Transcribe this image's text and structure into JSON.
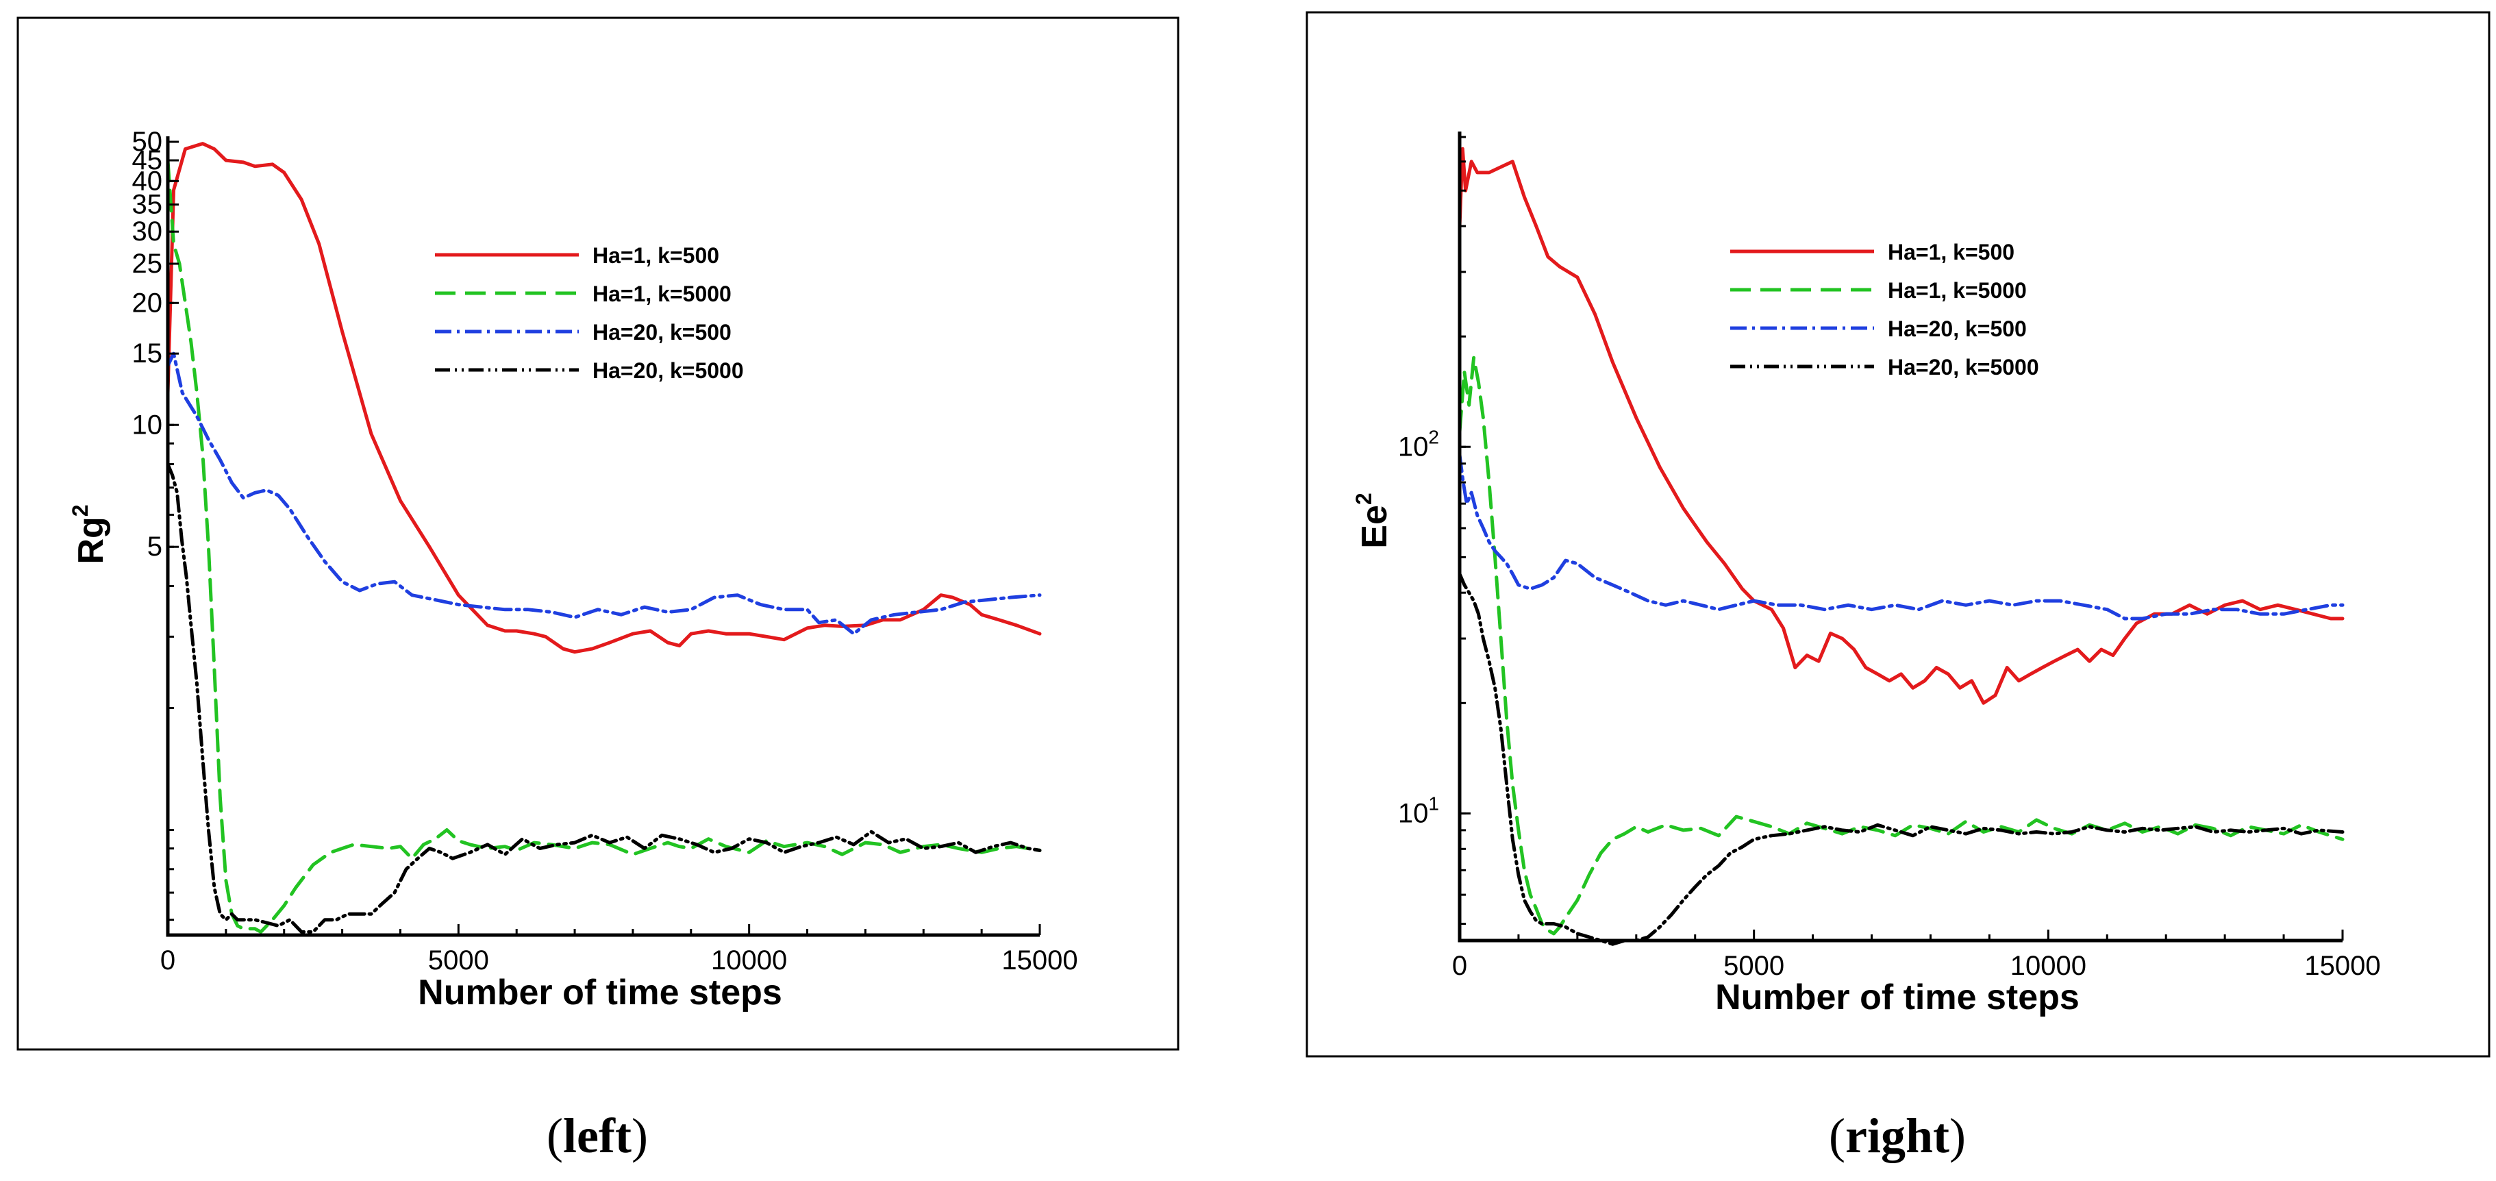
{
  "captions": {
    "left": "left",
    "right": "right"
  },
  "chart_data": [
    {
      "type": "line",
      "id": "left",
      "xlabel": "Number of time steps",
      "ylabel": "Rg",
      "ylabel_sup": "2",
      "xlim": [
        0,
        15000
      ],
      "ylim": [
        0.55,
        50
      ],
      "yscale": "log",
      "xticks": [
        0,
        5000,
        10000,
        15000
      ],
      "yticks": [
        {
          "v": 5,
          "label": "5"
        },
        {
          "v": 10,
          "label": "10"
        },
        {
          "v": 15,
          "label": "15"
        },
        {
          "v": 20,
          "label": "20"
        },
        {
          "v": 25,
          "label": "25"
        },
        {
          "v": 30,
          "label": "30"
        },
        {
          "v": 35,
          "label": "35"
        },
        {
          "v": 40,
          "label": "40"
        },
        {
          "v": 45,
          "label": "45"
        },
        {
          "v": 50,
          "label": "50"
        }
      ],
      "legend_position": "top-right",
      "series": [
        {
          "name": "Ha=1, k=500",
          "color": "#e31a1c",
          "dash": "none",
          "x": [
            0,
            100,
            300,
            600,
            800,
            1000,
            1300,
            1500,
            1800,
            2000,
            2300,
            2600,
            3000,
            3500,
            4000,
            4500,
            5000,
            5500,
            5800,
            6000,
            6300,
            6500,
            6800,
            7000,
            7300,
            7600,
            8000,
            8300,
            8600,
            8800,
            9000,
            9300,
            9600,
            10000,
            10300,
            10600,
            11000,
            11300,
            11600,
            12000,
            12300,
            12600,
            13000,
            13300,
            13500,
            13800,
            14000,
            14300,
            14600,
            15000
          ],
          "y": [
            12,
            38,
            48,
            49.5,
            48,
            45,
            44.5,
            43.5,
            44,
            42,
            36,
            28,
            17,
            9.5,
            6.5,
            5,
            3.8,
            3.2,
            3.1,
            3.1,
            3.05,
            3,
            2.8,
            2.75,
            2.8,
            2.9,
            3.05,
            3.1,
            2.9,
            2.85,
            3.05,
            3.1,
            3.05,
            3.05,
            3.0,
            2.95,
            3.15,
            3.2,
            3.18,
            3.2,
            3.3,
            3.3,
            3.5,
            3.8,
            3.75,
            3.6,
            3.4,
            3.3,
            3.2,
            3.05
          ]
        },
        {
          "name": "Ha=1, k=5000",
          "color": "#22c322",
          "dash": "30,14",
          "x": [
            0,
            100,
            200,
            300,
            400,
            500,
            600,
            700,
            800,
            900,
            1000,
            1100,
            1200,
            1300,
            1400,
            1500,
            1600,
            1800,
            2000,
            2200,
            2500,
            2800,
            3000,
            3200,
            3500,
            3800,
            4000,
            4200,
            4400,
            4600,
            4800,
            5000,
            5200,
            5500,
            5800,
            6000,
            6300,
            6600,
            7000,
            7300,
            7600,
            8000,
            8300,
            8600,
            8800,
            9000,
            9300,
            9600,
            10000,
            10300,
            10600,
            11000,
            11300,
            11600,
            12000,
            12300,
            12600,
            13000,
            13300,
            13600,
            14000,
            14300,
            14600,
            15000
          ],
          "y": [
            45,
            28,
            25,
            20,
            16,
            12,
            8.5,
            5,
            2.5,
            1.2,
            0.75,
            0.62,
            0.58,
            0.57,
            0.57,
            0.57,
            0.56,
            0.6,
            0.65,
            0.72,
            0.82,
            0.88,
            0.9,
            0.92,
            0.91,
            0.9,
            0.91,
            0.85,
            0.92,
            0.95,
            1.0,
            0.94,
            0.92,
            0.9,
            0.91,
            0.89,
            0.93,
            0.92,
            0.9,
            0.93,
            0.92,
            0.87,
            0.9,
            0.93,
            0.91,
            0.9,
            0.95,
            0.91,
            0.88,
            0.94,
            0.91,
            0.93,
            0.91,
            0.87,
            0.93,
            0.92,
            0.88,
            0.91,
            0.92,
            0.9,
            0.88,
            0.9,
            0.91,
            0.89
          ]
        },
        {
          "name": "Ha=20, k=500",
          "color": "#1f3fe0",
          "dash": "24,8,4,8",
          "x": [
            0,
            100,
            250,
            500,
            700,
            900,
            1100,
            1300,
            1500,
            1700,
            1900,
            2100,
            2400,
            2700,
            3000,
            3300,
            3600,
            3900,
            4200,
            4600,
            5000,
            5400,
            5800,
            6200,
            6600,
            7000,
            7400,
            7800,
            8200,
            8600,
            9000,
            9400,
            9800,
            10200,
            10600,
            11000,
            11200,
            11500,
            11800,
            12100,
            12500,
            12900,
            13300,
            13700,
            14100,
            14500,
            15000
          ],
          "y": [
            14,
            15,
            12,
            10.5,
            9.2,
            8.2,
            7.2,
            6.6,
            6.8,
            6.9,
            6.7,
            6.2,
            5.3,
            4.6,
            4.1,
            3.9,
            4.05,
            4.1,
            3.8,
            3.7,
            3.6,
            3.55,
            3.5,
            3.5,
            3.45,
            3.35,
            3.5,
            3.4,
            3.55,
            3.45,
            3.5,
            3.75,
            3.8,
            3.6,
            3.5,
            3.5,
            3.25,
            3.3,
            3.05,
            3.3,
            3.4,
            3.45,
            3.5,
            3.65,
            3.7,
            3.75,
            3.8
          ]
        },
        {
          "name": "Ha=20, k=5000",
          "color": "#000000",
          "dash": "22,7,3,7,3,7",
          "x": [
            0,
            80,
            160,
            240,
            320,
            400,
            500,
            600,
            700,
            800,
            900,
            1000,
            1100,
            1200,
            1300,
            1500,
            1700,
            1900,
            2100,
            2300,
            2500,
            2700,
            2900,
            3100,
            3300,
            3500,
            3700,
            3900,
            4100,
            4300,
            4500,
            4700,
            4900,
            5200,
            5500,
            5800,
            6100,
            6400,
            6700,
            7000,
            7300,
            7600,
            7900,
            8200,
            8500,
            8800,
            9100,
            9400,
            9700,
            10000,
            10300,
            10600,
            10900,
            11200,
            11500,
            11800,
            12100,
            12400,
            12700,
            13000,
            13300,
            13600,
            13900,
            14200,
            14500,
            14800,
            15000
          ],
          "y": [
            8,
            7.5,
            6.8,
            5.2,
            4.2,
            3.2,
            2.3,
            1.5,
            1.0,
            0.72,
            0.62,
            0.6,
            0.62,
            0.6,
            0.6,
            0.6,
            0.59,
            0.58,
            0.6,
            0.56,
            0.56,
            0.6,
            0.6,
            0.62,
            0.62,
            0.62,
            0.66,
            0.7,
            0.8,
            0.85,
            0.9,
            0.88,
            0.85,
            0.88,
            0.92,
            0.87,
            0.95,
            0.9,
            0.92,
            0.93,
            0.97,
            0.93,
            0.96,
            0.9,
            0.97,
            0.95,
            0.92,
            0.88,
            0.9,
            0.95,
            0.93,
            0.88,
            0.91,
            0.93,
            0.96,
            0.92,
            0.99,
            0.93,
            0.95,
            0.9,
            0.91,
            0.93,
            0.88,
            0.91,
            0.93,
            0.9,
            0.89
          ]
        }
      ]
    },
    {
      "type": "line",
      "id": "right",
      "xlabel": "Number of time steps",
      "ylabel": "Ee",
      "ylabel_sup": "2",
      "xlim": [
        0,
        15000
      ],
      "ylim": [
        4.5,
        700
      ],
      "yscale": "log",
      "xticks": [
        0,
        5000,
        10000,
        15000
      ],
      "yticks": [
        {
          "v": 10,
          "label": "10",
          "sup": "1"
        },
        {
          "v": 100,
          "label": "10",
          "sup": "2"
        }
      ],
      "legend_position": "top-right",
      "series": [
        {
          "name": "Ha=1, k=500",
          "color": "#e31a1c",
          "dash": "none",
          "x": [
            0,
            50,
            100,
            200,
            300,
            500,
            700,
            900,
            1100,
            1300,
            1500,
            1700,
            2000,
            2300,
            2600,
            3000,
            3400,
            3800,
            4200,
            4500,
            4800,
            5000,
            5300,
            5500,
            5700,
            5900,
            6100,
            6300,
            6500,
            6700,
            6900,
            7100,
            7300,
            7500,
            7700,
            7900,
            8100,
            8300,
            8500,
            8700,
            8900,
            9100,
            9300,
            9500,
            9700,
            9900,
            10100,
            10300,
            10500,
            10700,
            10900,
            11100,
            11300,
            11500,
            11800,
            12100,
            12400,
            12700,
            13000,
            13300,
            13600,
            13900,
            14200,
            14500,
            14800,
            15000
          ],
          "y": [
            400,
            650,
            500,
            600,
            560,
            560,
            580,
            600,
            480,
            400,
            330,
            310,
            290,
            230,
            170,
            120,
            88,
            68,
            55,
            48,
            41,
            38,
            36,
            32,
            25,
            27,
            26,
            31,
            30,
            28,
            25,
            24,
            23,
            24,
            22,
            23,
            25,
            24,
            22,
            23,
            20,
            21,
            25,
            23,
            24,
            25,
            26,
            27,
            28,
            26,
            28,
            27,
            30,
            33,
            35,
            35,
            37,
            35,
            37,
            38,
            36,
            37,
            36,
            35,
            34,
            34
          ]
        },
        {
          "name": "Ha=1, k=5000",
          "color": "#22c322",
          "dash": "30,14",
          "x": [
            0,
            80,
            160,
            240,
            320,
            400,
            500,
            600,
            700,
            800,
            900,
            1000,
            1100,
            1200,
            1300,
            1400,
            1500,
            1600,
            1700,
            1800,
            2000,
            2200,
            2400,
            2600,
            2800,
            3000,
            3200,
            3500,
            3800,
            4100,
            4400,
            4700,
            5000,
            5300,
            5600,
            5900,
            6200,
            6500,
            6800,
            7100,
            7400,
            7700,
            8000,
            8300,
            8600,
            8900,
            9200,
            9500,
            9800,
            10100,
            10400,
            10700,
            11000,
            11300,
            11600,
            11900,
            12200,
            12500,
            12800,
            13100,
            13400,
            13700,
            14000,
            14300,
            14600,
            15000
          ],
          "y": [
            110,
            160,
            130,
            175,
            150,
            120,
            80,
            50,
            30,
            18,
            12,
            9,
            7,
            6,
            5.5,
            5,
            4.8,
            4.7,
            4.9,
            5.2,
            5.8,
            6.8,
            7.8,
            8.5,
            8.8,
            9.2,
            8.9,
            9.3,
            9.0,
            9.1,
            8.7,
            9.8,
            9.5,
            9.2,
            8.8,
            9.4,
            9.1,
            8.8,
            9.2,
            9.0,
            8.7,
            9.3,
            9.1,
            8.8,
            9.5,
            8.9,
            9.2,
            8.9,
            9.6,
            9.1,
            8.8,
            9.3,
            9.0,
            9.4,
            8.9,
            9.2,
            8.8,
            9.3,
            9.1,
            8.7,
            9.2,
            9.0,
            8.8,
            9.3,
            8.9,
            8.5
          ]
        },
        {
          "name": "Ha=20, k=500",
          "color": "#1f3fe0",
          "dash": "24,8,4,8",
          "x": [
            0,
            60,
            120,
            200,
            300,
            400,
            500,
            600,
            700,
            800,
            900,
            1000,
            1200,
            1400,
            1600,
            1800,
            2000,
            2300,
            2600,
            2900,
            3200,
            3500,
            3800,
            4100,
            4400,
            4700,
            5000,
            5400,
            5800,
            6200,
            6600,
            7000,
            7400,
            7800,
            8200,
            8600,
            9000,
            9400,
            9800,
            10200,
            10600,
            11000,
            11300,
            11600,
            12000,
            12400,
            12800,
            13200,
            13600,
            14000,
            14400,
            14800,
            15000
          ],
          "y": [
            95,
            80,
            70,
            75,
            65,
            60,
            55,
            52,
            50,
            48,
            45,
            42,
            41,
            42,
            44,
            49,
            48,
            44,
            42,
            40,
            38,
            37,
            38,
            37,
            36,
            37,
            38,
            37,
            37,
            36,
            37,
            36,
            37,
            36,
            38,
            37,
            38,
            37,
            38,
            38,
            37,
            36,
            34,
            34,
            35,
            35,
            36,
            36,
            35,
            35,
            36,
            37,
            37
          ]
        },
        {
          "name": "Ha=20, k=5000",
          "color": "#000000",
          "dash": "22,7,3,7,3,7",
          "x": [
            0,
            80,
            160,
            240,
            320,
            400,
            500,
            600,
            700,
            800,
            900,
            1000,
            1100,
            1200,
            1300,
            1400,
            1500,
            1600,
            1800,
            2000,
            2200,
            2400,
            2600,
            2800,
            3000,
            3200,
            3400,
            3600,
            3800,
            4000,
            4200,
            4400,
            4600,
            4800,
            5000,
            5300,
            5600,
            5900,
            6200,
            6500,
            6800,
            7100,
            7400,
            7700,
            8000,
            8300,
            8600,
            8900,
            9200,
            9500,
            9800,
            10100,
            10400,
            10700,
            11000,
            11300,
            11600,
            11900,
            12200,
            12500,
            12800,
            13100,
            13400,
            13700,
            14000,
            14300,
            14600,
            15000
          ],
          "y": [
            45,
            42,
            40,
            38,
            35,
            30,
            26,
            22,
            17,
            12,
            8.5,
            6.8,
            5.8,
            5.4,
            5.1,
            5.0,
            5.0,
            5.0,
            4.9,
            4.7,
            4.6,
            4.5,
            4.4,
            4.5,
            4.5,
            4.6,
            4.9,
            5.3,
            5.8,
            6.3,
            6.8,
            7.2,
            7.8,
            8.1,
            8.5,
            8.7,
            8.8,
            9.0,
            9.2,
            9.0,
            8.9,
            9.3,
            9.0,
            8.7,
            9.2,
            9.0,
            8.8,
            9.1,
            9.0,
            8.8,
            8.9,
            8.8,
            8.9,
            9.2,
            9.0,
            8.9,
            9.1,
            9.0,
            9.1,
            9.2,
            8.9,
            9.0,
            8.9,
            9.0,
            9.1,
            8.8,
            9.0,
            8.9
          ]
        }
      ]
    }
  ]
}
